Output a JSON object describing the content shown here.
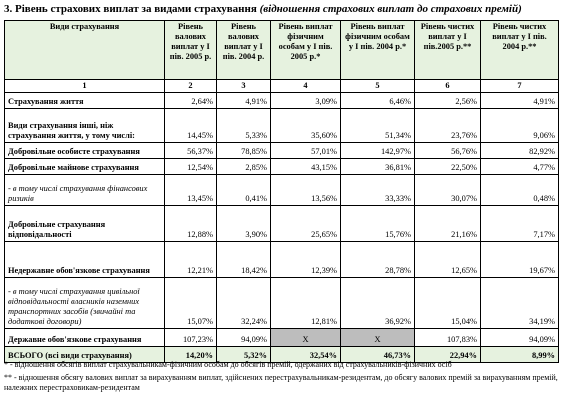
{
  "title": "3. Рівень страхових виплат за видами страхування",
  "subtitle": "(відношення страхових виплат до страхових премій)",
  "table": {
    "header": [
      "Види страхування",
      "Рівень валових виплат у І пів. 2005 р.",
      "Рівень валових виплат у І пів. 2004 р.",
      "Рівень виплат фізичним особам у І пів. 2005 р.*",
      "Рівень виплат фізичним особам у І пів. 2004 р.*",
      "Рівень чистих виплат у І пів.2005 р.**",
      "Рівень чистих виплат у І пів. 2004 р.**"
    ],
    "numbers": [
      "1",
      "2",
      "3",
      "4",
      "5",
      "6",
      "7"
    ],
    "rows": [
      [
        "Страхування життя",
        "2,64%",
        "4,91%",
        "3,09%",
        "6,46%",
        "2,56%",
        "4,91%"
      ],
      [
        "Види страхування інші, ніж страхування життя, у тому числі:",
        "14,45%",
        "5,33%",
        "35,60%",
        "51,34%",
        "23,76%",
        "9,06%"
      ],
      [
        "Добровільне особисте страхування",
        "56,37%",
        "78,85%",
        "57,01%",
        "142,97%",
        "56,76%",
        "82,92%"
      ],
      [
        "Добровільне майнове страхування",
        "12,54%",
        "2,85%",
        "43,15%",
        "36,81%",
        "22,50%",
        "4,77%"
      ],
      [
        "- в тому числі страхування фінансових ризиків",
        "13,45%",
        "0,41%",
        "13,56%",
        "33,33%",
        "30,07%",
        "0,48%"
      ],
      [
        "Добровільне страхування відповідальності",
        "12,88%",
        "3,90%",
        "25,65%",
        "15,76%",
        "21,16%",
        "7,17%"
      ],
      [
        "Недержавне обов'язкове страхування",
        "12,21%",
        "18,42%",
        "12,39%",
        "28,78%",
        "12,65%",
        "19,67%"
      ],
      [
        "- в тому числі страхування цивільної відповідальності власників наземних транспортних засобів (звичайні та додаткові договори)",
        "15,07%",
        "32,24%",
        "12,81%",
        "36,92%",
        "15,04%",
        "34,19%"
      ],
      [
        "Державне обов'язкове страхування",
        "107,23%",
        "94,09%",
        "X",
        "X",
        "107,83%",
        "94,09%"
      ],
      [
        "ВСЬОГО (всі види страхування)",
        "14,20%",
        "5,32%",
        "32,54%",
        "46,73%",
        "22,94%",
        "8,99%"
      ]
    ]
  },
  "footnotes": [
    "* - відношення обсягів виплат страхувальникам-фізичним особам до обсягів премій, одержаних від страхувальників-фізичних осіб",
    "** - відношення обсягу валових виплат за вирахуванням виплат, здійснених перестрахувальникам-резидентам, до обсягу валових премій за вирахуванням премій, належних перестраховикам-резидентам"
  ]
}
